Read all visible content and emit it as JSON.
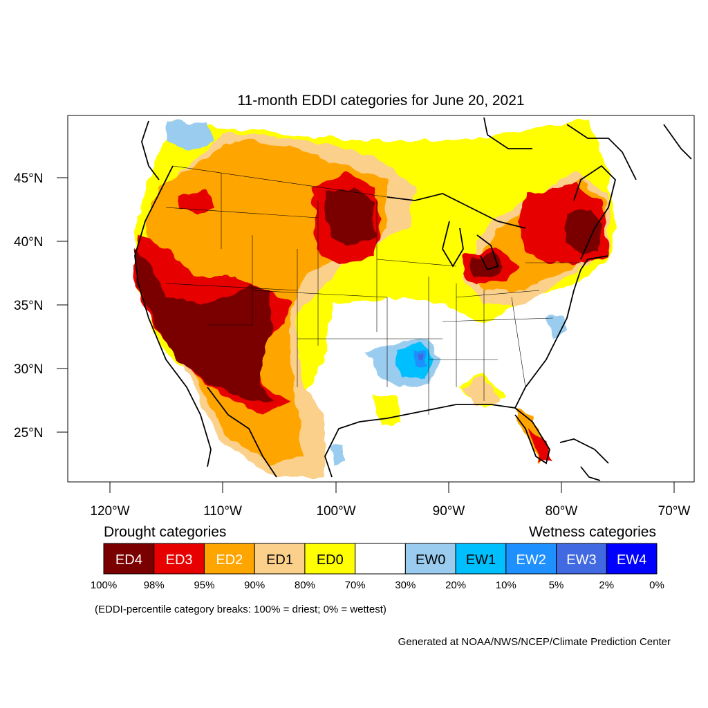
{
  "title": "11-month EDDI categories for June 20, 2021",
  "lat_labels": [
    "45°N",
    "40°N",
    "35°N",
    "30°N",
    "25°N"
  ],
  "lon_labels": [
    "120°W",
    "110°W",
    "100°W",
    "90°W",
    "80°W",
    "70°W"
  ],
  "legend": {
    "drought_heading": "Drought categories",
    "wetness_heading": "Wetness categories",
    "categories": [
      {
        "label": "ED4",
        "color": "#7a0000"
      },
      {
        "label": "ED3",
        "color": "#e60000"
      },
      {
        "label": "ED2",
        "color": "#ffa500"
      },
      {
        "label": "ED1",
        "color": "#fbd08a"
      },
      {
        "label": "ED0",
        "color": "#ffff00"
      },
      {
        "label": "",
        "color": "#ffffff"
      },
      {
        "label": "EW0",
        "color": "#99ccee"
      },
      {
        "label": "EW1",
        "color": "#00bfff"
      },
      {
        "label": "EW2",
        "color": "#1e90ff"
      },
      {
        "label": "EW3",
        "color": "#4169e1"
      },
      {
        "label": "EW4",
        "color": "#0000ff"
      }
    ],
    "breaks": [
      "100%",
      "98%",
      "95%",
      "90%",
      "80%",
      "70%",
      "30%",
      "20%",
      "10%",
      "5%",
      "2%",
      "0%"
    ]
  },
  "note": "(EDDI-percentile category breaks: 100% = driest; 0% = wettest)",
  "credit": "Generated at NOAA/NWS/NCEP/Climate Prediction Center"
}
